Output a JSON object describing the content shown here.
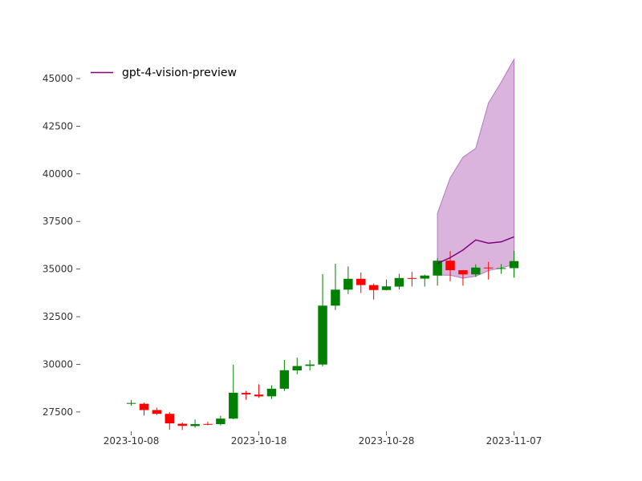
{
  "chart_data": {
    "type": "candlestick",
    "title": "",
    "xlabel": "",
    "ylabel": "",
    "x_tick_labels": [
      "2023-10-08",
      "2023-10-18",
      "2023-10-28",
      "2023-11-07"
    ],
    "y_tick_labels": [
      "27500",
      "30000",
      "32500",
      "35000",
      "37500",
      "40000",
      "42500",
      "45000"
    ],
    "y_ticks": [
      27500,
      30000,
      32500,
      35000,
      37500,
      40000,
      42500,
      45000
    ],
    "ylim": [
      26400,
      46600
    ],
    "xlim": [
      "2023-10-04",
      "2023-11-12"
    ],
    "grid": false,
    "legend": {
      "placement": "top-left",
      "entries": [
        "gpt-4-vision-preview"
      ]
    },
    "colors": {
      "up": "#008000",
      "down": "#ff0000",
      "forecast": "#800080",
      "band": "#d8b0db",
      "band_edge": "#b37ac0"
    },
    "candles": [
      {
        "date": "2023-10-08",
        "open": 27970,
        "high": 28130,
        "low": 27830,
        "close": 27970
      },
      {
        "date": "2023-10-09",
        "open": 27930,
        "high": 27990,
        "low": 27310,
        "close": 27600
      },
      {
        "date": "2023-10-10",
        "open": 27600,
        "high": 27730,
        "low": 27340,
        "close": 27400
      },
      {
        "date": "2023-10-11",
        "open": 27400,
        "high": 27490,
        "low": 26570,
        "close": 26900
      },
      {
        "date": "2023-10-12",
        "open": 26880,
        "high": 26950,
        "low": 26550,
        "close": 26770
      },
      {
        "date": "2023-10-13",
        "open": 26760,
        "high": 27100,
        "low": 26670,
        "close": 26860
      },
      {
        "date": "2023-10-14",
        "open": 26870,
        "high": 26980,
        "low": 26800,
        "close": 26860
      },
      {
        "date": "2023-10-15",
        "open": 26860,
        "high": 27300,
        "low": 26790,
        "close": 27150
      },
      {
        "date": "2023-10-16",
        "open": 27150,
        "high": 29980,
        "low": 27120,
        "close": 28510
      },
      {
        "date": "2023-10-17",
        "open": 28500,
        "high": 28610,
        "low": 28140,
        "close": 28420
      },
      {
        "date": "2023-10-18",
        "open": 28410,
        "high": 28950,
        "low": 28240,
        "close": 28320
      },
      {
        "date": "2023-10-19",
        "open": 28320,
        "high": 28900,
        "low": 28180,
        "close": 28720
      },
      {
        "date": "2023-10-20",
        "open": 28720,
        "high": 30230,
        "low": 28600,
        "close": 29690
      },
      {
        "date": "2023-10-21",
        "open": 29680,
        "high": 30350,
        "low": 29480,
        "close": 29910
      },
      {
        "date": "2023-10-22",
        "open": 29920,
        "high": 30230,
        "low": 29680,
        "close": 29990
      },
      {
        "date": "2023-10-23",
        "open": 29990,
        "high": 34740,
        "low": 29890,
        "close": 33080
      },
      {
        "date": "2023-10-24",
        "open": 33080,
        "high": 35280,
        "low": 32850,
        "close": 33920
      },
      {
        "date": "2023-10-25",
        "open": 33920,
        "high": 35140,
        "low": 33690,
        "close": 34490
      },
      {
        "date": "2023-10-26",
        "open": 34490,
        "high": 34820,
        "low": 33740,
        "close": 34160
      },
      {
        "date": "2023-10-27",
        "open": 34160,
        "high": 34240,
        "low": 33400,
        "close": 33900
      },
      {
        "date": "2023-10-28",
        "open": 33900,
        "high": 34450,
        "low": 33880,
        "close": 34090
      },
      {
        "date": "2023-10-29",
        "open": 34080,
        "high": 34750,
        "low": 33930,
        "close": 34530
      },
      {
        "date": "2023-10-30",
        "open": 34530,
        "high": 34850,
        "low": 34090,
        "close": 34500
      },
      {
        "date": "2023-10-31",
        "open": 34500,
        "high": 34710,
        "low": 34080,
        "close": 34660
      },
      {
        "date": "2023-11-01",
        "open": 34660,
        "high": 35570,
        "low": 34130,
        "close": 35440
      },
      {
        "date": "2023-11-02",
        "open": 35440,
        "high": 35940,
        "low": 34360,
        "close": 34940
      },
      {
        "date": "2023-11-03",
        "open": 34940,
        "high": 34950,
        "low": 34130,
        "close": 34720
      },
      {
        "date": "2023-11-04",
        "open": 34720,
        "high": 35250,
        "low": 34590,
        "close": 35080
      },
      {
        "date": "2023-11-05",
        "open": 35080,
        "high": 35380,
        "low": 34450,
        "close": 35050
      },
      {
        "date": "2023-11-06",
        "open": 35050,
        "high": 35260,
        "low": 34750,
        "close": 35050
      },
      {
        "date": "2023-11-07",
        "open": 35050,
        "high": 35960,
        "low": 34550,
        "close": 35420
      }
    ],
    "series": [
      {
        "name": "gpt-4-vision-preview",
        "type": "line",
        "x": [
          "2023-11-01",
          "2023-11-02",
          "2023-11-03",
          "2023-11-04",
          "2023-11-05",
          "2023-11-06",
          "2023-11-07"
        ],
        "values": [
          35300,
          35600,
          36000,
          36530,
          36360,
          36430,
          36690
        ],
        "band_upper": [
          37930,
          39790,
          40870,
          41340,
          43720,
          44820,
          46010
        ],
        "band_lower": [
          34680,
          34680,
          34520,
          34620,
          34920,
          35060,
          35240
        ]
      }
    ]
  }
}
